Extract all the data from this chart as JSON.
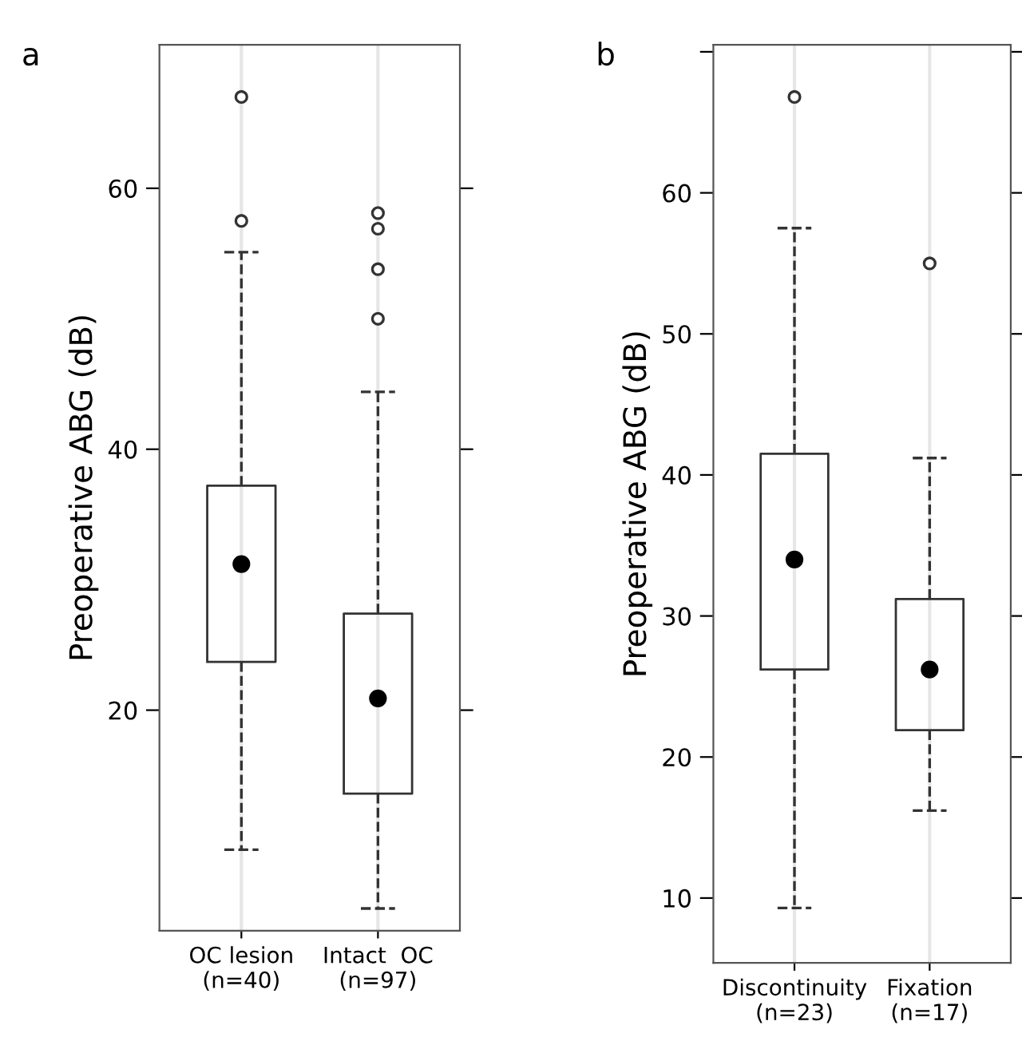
{
  "chart_data": [
    {
      "type": "box",
      "title": "a",
      "ylabel": "Preoperative ABG (dB)",
      "categories": [
        "OC lesion\n(n=40)",
        "Intact  OC\n(n=97)"
      ],
      "boxes": [
        {
          "low": 9.3,
          "q1": 23.7,
          "median": 31.2,
          "q3": 37.2,
          "high": 55.1,
          "outliers": [
            67.0,
            57.5
          ]
        },
        {
          "low": 4.8,
          "q1": 13.6,
          "median": 20.9,
          "q3": 27.4,
          "high": 44.4,
          "outliers": [
            58.1,
            56.9,
            53.8,
            50.0
          ]
        }
      ],
      "ylim": [
        3.1,
        71.0
      ],
      "yticks": [
        20,
        40,
        60
      ],
      "grid": "x",
      "line_style": "dashed"
    },
    {
      "type": "box",
      "title": "b",
      "ylabel": "Preoperative ABG (dB)",
      "categories": [
        "Discontinuity\n(n=23)",
        "Fixation\n(n=17)"
      ],
      "boxes": [
        {
          "low": 9.3,
          "q1": 26.2,
          "median": 34.0,
          "q3": 41.5,
          "high": 57.5,
          "outliers": [
            66.8
          ]
        },
        {
          "low": 16.2,
          "q1": 21.9,
          "median": 26.2,
          "q3": 31.2,
          "high": 41.2,
          "outliers": [
            55.0
          ]
        }
      ],
      "ylim": [
        5.4,
        70.5
      ],
      "yticks": [
        10,
        20,
        30,
        40,
        50,
        60,
        {
          "value": 70,
          "label": null
        }
      ],
      "grid": "x",
      "line_style": "dashed"
    }
  ]
}
